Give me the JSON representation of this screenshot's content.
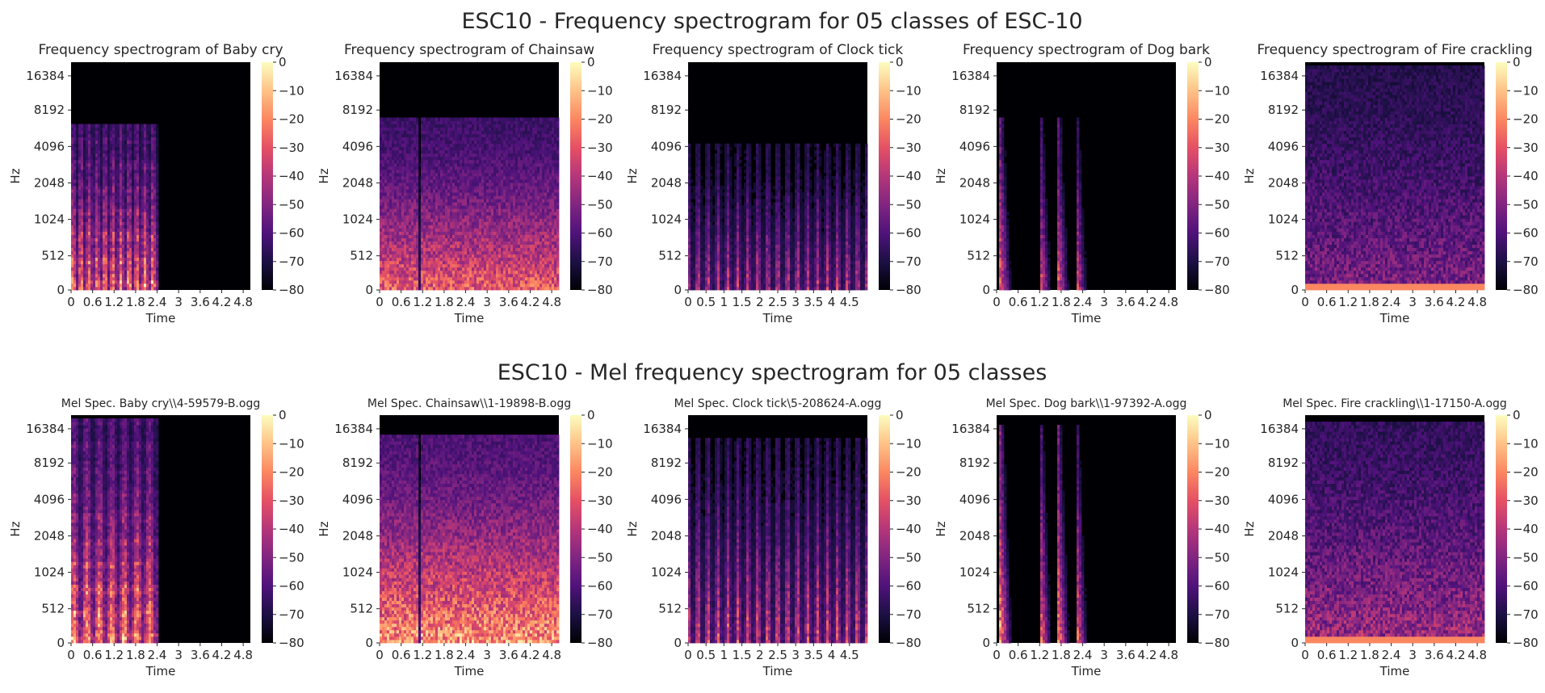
{
  "row_titles": [
    "ESC10 - Frequency spectrogram for 05 classes of ESC-10",
    "ESC10 - Mel frequency spectrogram for 05 classes"
  ],
  "colormap": [
    "#000004",
    "#1c1044",
    "#4f127b",
    "#812581",
    "#b5367a",
    "#e55064",
    "#fb8761",
    "#fec287",
    "#fcfdbf"
  ],
  "chart_data": [
    {
      "type": "heatmap",
      "row": 0,
      "col": 0,
      "title": "Frequency spectrogram of Baby cry",
      "xlabel": "Time",
      "ylabel": "Hz",
      "xticks": [
        "0",
        "0.6",
        "1.2",
        "1.8",
        "2.4",
        "3",
        "3.6",
        "4.2",
        "4.8"
      ],
      "xlim": [
        0,
        5
      ],
      "yticks": [
        "0",
        "512",
        "1024",
        "2048",
        "4096",
        "8192",
        "16384"
      ],
      "colorbar_ticks": [
        "0",
        "−10",
        "−20",
        "−30",
        "−40",
        "−50",
        "−60",
        "−70",
        "−80"
      ],
      "clim": [
        -80,
        0
      ],
      "pattern": {
        "kind": "harmonic",
        "active_end": 2.45,
        "top_frac": 0.73,
        "stripes": 22,
        "energy": 0.75
      }
    },
    {
      "type": "heatmap",
      "row": 0,
      "col": 1,
      "title": "Frequency spectrogram of Chainsaw",
      "xlabel": "Time",
      "ylabel": "Hz",
      "xticks": [
        "0",
        "0.6",
        "1.2",
        "1.8",
        "2.4",
        "3",
        "3.6",
        "4.2",
        "4.8"
      ],
      "xlim": [
        0,
        5
      ],
      "yticks": [
        "0",
        "512",
        "1024",
        "2048",
        "4096",
        "8192",
        "16384"
      ],
      "colorbar_ticks": [
        "0",
        "−10",
        "−20",
        "−30",
        "−40",
        "−50",
        "−60",
        "−70",
        "−80"
      ],
      "clim": [
        -80,
        0
      ],
      "pattern": {
        "kind": "dense",
        "active_end": 5,
        "top_frac": 0.75,
        "energy": 0.62
      }
    },
    {
      "type": "heatmap",
      "row": 0,
      "col": 2,
      "title": "Frequency spectrogram of Clock tick",
      "xlabel": "Time",
      "ylabel": "Hz",
      "xticks": [
        "0",
        "0.5",
        "1",
        "1.5",
        "2",
        "2.5",
        "3",
        "3.5",
        "4",
        "4.5"
      ],
      "xlim": [
        0,
        5
      ],
      "yticks": [
        "0",
        "512",
        "1024",
        "2048",
        "4096",
        "8192",
        "16384"
      ],
      "colorbar_ticks": [
        "0",
        "−10",
        "−20",
        "−30",
        "−40",
        "−50",
        "−60",
        "−70",
        "−80"
      ],
      "clim": [
        -80,
        0
      ],
      "pattern": {
        "kind": "ticks",
        "active_end": 5,
        "top_frac": 0.64,
        "stripes": 18,
        "energy": 0.6
      }
    },
    {
      "type": "heatmap",
      "row": 0,
      "col": 3,
      "title": "Frequency spectrogram of Dog bark",
      "xlabel": "Time",
      "ylabel": "Hz",
      "xticks": [
        "0",
        "0.6",
        "1.2",
        "1.8",
        "2.4",
        "3",
        "3.6",
        "4.2",
        "4.8"
      ],
      "xlim": [
        0,
        5
      ],
      "yticks": [
        "0",
        "512",
        "1024",
        "2048",
        "4096",
        "8192",
        "16384"
      ],
      "colorbar_ticks": [
        "0",
        "−10",
        "−20",
        "−30",
        "−40",
        "−50",
        "−60",
        "−70",
        "−80"
      ],
      "clim": [
        -80,
        0
      ],
      "pattern": {
        "kind": "barks",
        "active_end": 2.6,
        "top_frac": 0.75,
        "barks": [
          0.15,
          1.25,
          1.75,
          2.25
        ],
        "energy": 0.55
      }
    },
    {
      "type": "heatmap",
      "row": 0,
      "col": 4,
      "title": "Frequency spectrogram of Fire crackling",
      "xlabel": "Time",
      "ylabel": "Hz",
      "xticks": [
        "0",
        "0.6",
        "1.2",
        "1.8",
        "2.4",
        "3",
        "3.6",
        "4.2",
        "4.8"
      ],
      "xlim": [
        0,
        5
      ],
      "yticks": [
        "0",
        "512",
        "1024",
        "2048",
        "4096",
        "8192",
        "16384"
      ],
      "colorbar_ticks": [
        "0",
        "−10",
        "−20",
        "−30",
        "−40",
        "−50",
        "−60",
        "−70",
        "−80"
      ],
      "clim": [
        -80,
        0
      ],
      "pattern": {
        "kind": "crackle",
        "active_end": 5,
        "top_frac": 0.98,
        "energy": 0.45
      }
    },
    {
      "type": "heatmap",
      "row": 1,
      "col": 0,
      "title": "Mel Spec. Baby cry\\\\4-59579-B.ogg",
      "xlabel": "Time",
      "ylabel": "Hz",
      "xticks": [
        "0",
        "0.6",
        "1.2",
        "1.8",
        "2.4",
        "3",
        "3.6",
        "4.2",
        "4.8"
      ],
      "xlim": [
        0,
        5
      ],
      "yticks": [
        "0",
        "512",
        "1024",
        "2048",
        "4096",
        "8192",
        "16384"
      ],
      "colorbar_ticks": [
        "0",
        "−10",
        "−20",
        "−30",
        "−40",
        "−50",
        "−60",
        "−70",
        "−80"
      ],
      "clim": [
        -80,
        0
      ],
      "pattern": {
        "kind": "harmonic",
        "active_end": 2.45,
        "top_frac": 0.98,
        "stripes": 14,
        "energy": 0.8
      }
    },
    {
      "type": "heatmap",
      "row": 1,
      "col": 1,
      "title": "Mel Spec. Chainsaw\\\\1-19898-B.ogg",
      "xlabel": "Time",
      "ylabel": "Hz",
      "xticks": [
        "0",
        "0.6",
        "1.2",
        "1.8",
        "2.4",
        "3",
        "3.6",
        "4.2",
        "4.8"
      ],
      "xlim": [
        0,
        5
      ],
      "yticks": [
        "0",
        "512",
        "1024",
        "2048",
        "4096",
        "8192",
        "16384"
      ],
      "colorbar_ticks": [
        "0",
        "−10",
        "−20",
        "−30",
        "−40",
        "−50",
        "−60",
        "−70",
        "−80"
      ],
      "clim": [
        -80,
        0
      ],
      "pattern": {
        "kind": "dense",
        "active_end": 5,
        "top_frac": 0.92,
        "energy": 0.75
      }
    },
    {
      "type": "heatmap",
      "row": 1,
      "col": 2,
      "title": "Mel Spec. Clock tick\\5-208624-A.ogg",
      "xlabel": "Time",
      "ylabel": "Hz",
      "xticks": [
        "0",
        "0.5",
        "1",
        "1.5",
        "2",
        "2.5",
        "3",
        "3.5",
        "4",
        "4.5"
      ],
      "xlim": [
        0,
        5
      ],
      "yticks": [
        "0",
        "512",
        "1024",
        "2048",
        "4096",
        "8192",
        "16384"
      ],
      "colorbar_ticks": [
        "0",
        "−10",
        "−20",
        "−30",
        "−40",
        "−50",
        "−60",
        "−70",
        "−80"
      ],
      "clim": [
        -80,
        0
      ],
      "pattern": {
        "kind": "ticks",
        "active_end": 5,
        "top_frac": 0.9,
        "stripes": 18,
        "energy": 0.7
      }
    },
    {
      "type": "heatmap",
      "row": 1,
      "col": 3,
      "title": "Mel Spec. Dog bark\\\\1-97392-A.ogg",
      "xlabel": "Time",
      "ylabel": "Hz",
      "xticks": [
        "0",
        "0.6",
        "1.2",
        "1.8",
        "2.4",
        "3",
        "3.6",
        "4.2",
        "4.8"
      ],
      "xlim": [
        0,
        5
      ],
      "yticks": [
        "0",
        "512",
        "1024",
        "2048",
        "4096",
        "8192",
        "16384"
      ],
      "colorbar_ticks": [
        "0",
        "−10",
        "−20",
        "−30",
        "−40",
        "−50",
        "−60",
        "−70",
        "−80"
      ],
      "clim": [
        -80,
        0
      ],
      "pattern": {
        "kind": "barks",
        "active_end": 2.6,
        "top_frac": 0.95,
        "barks": [
          0.15,
          1.25,
          1.75,
          2.25
        ],
        "energy": 0.65
      }
    },
    {
      "type": "heatmap",
      "row": 1,
      "col": 4,
      "title": "Mel Spec. Fire crackling\\\\1-17150-A.ogg",
      "xlabel": "Time",
      "ylabel": "Hz",
      "xticks": [
        "0",
        "0.6",
        "1.2",
        "1.8",
        "2.4",
        "3",
        "3.6",
        "4.2",
        "4.8"
      ],
      "xlim": [
        0,
        5
      ],
      "yticks": [
        "0",
        "512",
        "1024",
        "2048",
        "4096",
        "8192",
        "16384"
      ],
      "colorbar_ticks": [
        "0",
        "−10",
        "−20",
        "−30",
        "−40",
        "−50",
        "−60",
        "−70",
        "−80"
      ],
      "clim": [
        -80,
        0
      ],
      "pattern": {
        "kind": "crackle",
        "active_end": 5,
        "top_frac": 0.97,
        "energy": 0.55
      }
    }
  ]
}
